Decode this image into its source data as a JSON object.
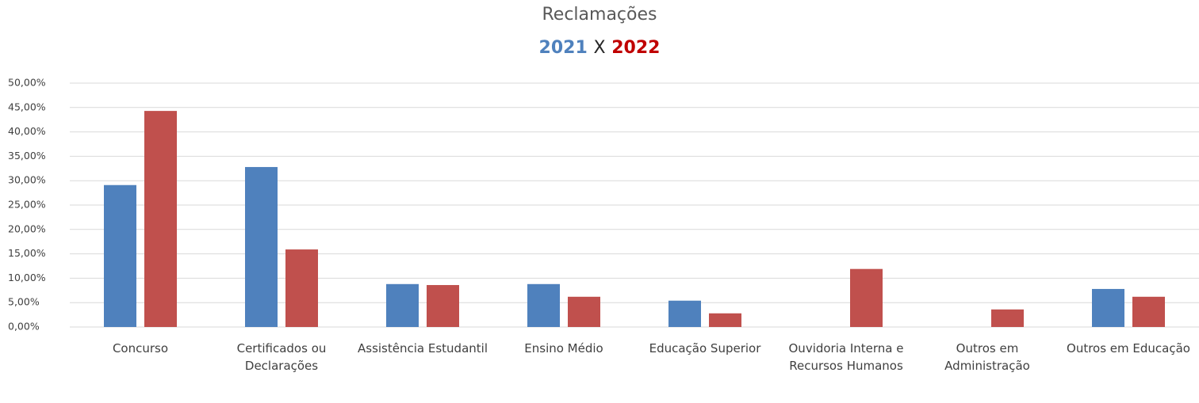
{
  "chart_data": {
    "type": "bar",
    "title": "Reclamações",
    "subtitle_separator": "X",
    "categories": [
      "Concurso",
      "Certificados ou Declarações",
      "Assistência Estudantil",
      "Ensino Médio",
      "Educação Superior",
      "Ouvidoria Interna e Recursos Humanos",
      "Outros em Administração",
      "Outros em Educação"
    ],
    "series": [
      {
        "name": "2021",
        "color": "#4f81bd",
        "values": [
          29.1,
          32.8,
          8.8,
          8.8,
          5.4,
          0,
          0,
          7.8
        ]
      },
      {
        "name": "2022",
        "color": "#c0504d",
        "values": [
          44.3,
          15.9,
          8.6,
          6.2,
          2.8,
          11.9,
          3.6,
          6.2
        ]
      }
    ],
    "ylim": [
      0,
      50
    ],
    "yticks": [
      {
        "value": 0,
        "label": "0,00%"
      },
      {
        "value": 5,
        "label": "5,00%"
      },
      {
        "value": 10,
        "label": "10,00%"
      },
      {
        "value": 15,
        "label": "15,00%"
      },
      {
        "value": 20,
        "label": "20,00%"
      },
      {
        "value": 25,
        "label": "25,00%"
      },
      {
        "value": 30,
        "label": "30,00%"
      },
      {
        "value": 35,
        "label": "35,00%"
      },
      {
        "value": 40,
        "label": "40,00%"
      },
      {
        "value": 45,
        "label": "45,00%"
      },
      {
        "value": 50,
        "label": "50,00%"
      }
    ],
    "grid": true
  }
}
